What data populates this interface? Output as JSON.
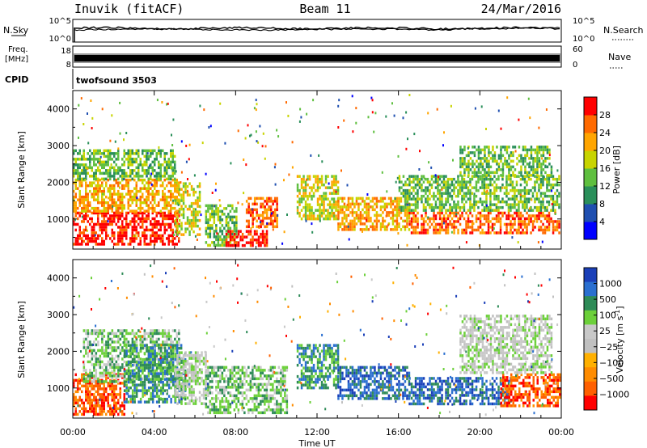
{
  "header": {
    "station": "Inuvik (fitACF)",
    "beam": "Beam 11",
    "date": "24/Mar/2016"
  },
  "nsky_panel": {
    "left_label": "N.Sky",
    "right_label": "N.Search",
    "yticks": [
      "10^5",
      "10^0"
    ],
    "right_yticks": [
      "10^5",
      "10^0"
    ],
    "line_color": "#000000"
  },
  "freq_panel": {
    "left_label_1": "Freq.",
    "left_label_2": "[MHz]",
    "right_label": "Nave",
    "yticks": [
      "18",
      "8"
    ],
    "right_yticks": [
      "60",
      "0"
    ]
  },
  "cpid": {
    "label": "CPID",
    "value": "twofsound 3503"
  },
  "colors": {
    "power": [
      "#0000ff",
      "#1f4fb0",
      "#2a8f5a",
      "#5fbf3f",
      "#c8d400",
      "#ffa500",
      "#ff6a00",
      "#ff0000"
    ],
    "velocity": [
      "#1a3fb8",
      "#2a6fd0",
      "#2e8b57",
      "#6cd03a",
      "#c8c8c8",
      "#c0c0c0",
      "#ffb000",
      "#ff8c00",
      "#ff6000",
      "#ff0000"
    ]
  },
  "chart_data": [
    {
      "type": "heatmap",
      "name": "power",
      "ylabel": "Slant Range [km]",
      "ylim": [
        180,
        4500
      ],
      "yticks": [
        1000,
        2000,
        3000,
        4000
      ],
      "xlim": [
        0,
        24
      ],
      "colorbar": {
        "label": "Power [dB]",
        "range": [
          0,
          32
        ],
        "ticks": [
          4,
          8,
          12,
          16,
          20,
          24,
          28
        ]
      },
      "echo_regions": [
        {
          "t0": 0.0,
          "t1": 5.2,
          "r0": 300,
          "r1": 1200,
          "level": 7
        },
        {
          "t0": 0.0,
          "t1": 5.2,
          "r0": 1200,
          "r1": 2100,
          "level": 5
        },
        {
          "t0": 0.0,
          "t1": 5.0,
          "r0": 2100,
          "r1": 2900,
          "level": 3
        },
        {
          "t0": 5.0,
          "t1": 6.2,
          "r0": 600,
          "r1": 2000,
          "level": 4
        },
        {
          "t0": 6.5,
          "t1": 8.0,
          "r0": 300,
          "r1": 1400,
          "level": 3
        },
        {
          "t0": 7.5,
          "t1": 9.5,
          "r0": 250,
          "r1": 700,
          "level": 7
        },
        {
          "t0": 8.5,
          "t1": 10.0,
          "r0": 800,
          "r1": 1600,
          "level": 6
        },
        {
          "t0": 11.0,
          "t1": 13.0,
          "r0": 1000,
          "r1": 2200,
          "level": 4
        },
        {
          "t0": 13.0,
          "t1": 16.5,
          "r0": 700,
          "r1": 1600,
          "level": 5
        },
        {
          "t0": 16.5,
          "t1": 23.9,
          "r0": 600,
          "r1": 1200,
          "level": 6
        },
        {
          "t0": 16.0,
          "t1": 23.9,
          "r0": 1200,
          "r1": 2200,
          "level": 3
        },
        {
          "t0": 19.0,
          "t1": 23.5,
          "r0": 2200,
          "r1": 3000,
          "level": 3
        }
      ]
    },
    {
      "type": "heatmap",
      "name": "velocity",
      "ylabel": "Slant Range [km]",
      "ylim": [
        180,
        4500
      ],
      "yticks": [
        1000,
        2000,
        3000,
        4000
      ],
      "xlim": [
        0,
        24
      ],
      "xticks": [
        "00:00",
        "04:00",
        "08:00",
        "12:00",
        "16:00",
        "20:00",
        "00:00"
      ],
      "xlabel": "Time UT",
      "colorbar": {
        "label": "Velocity [m s^-1]",
        "ticks": [
          "1000",
          "500",
          "100",
          "25",
          "−25",
          "−100",
          "−500",
          "−1000"
        ]
      },
      "echo_regions": [
        {
          "t0": 0.0,
          "t1": 2.5,
          "r0": 300,
          "r1": 1400,
          "level": 8
        },
        {
          "t0": 0.5,
          "t1": 5.2,
          "r0": 1200,
          "r1": 2600,
          "level": 3
        },
        {
          "t0": 2.5,
          "t1": 5.5,
          "r0": 600,
          "r1": 2200,
          "level": 2
        },
        {
          "t0": 5.0,
          "t1": 6.5,
          "r0": 600,
          "r1": 2000,
          "level": 4
        },
        {
          "t0": 6.5,
          "t1": 10.5,
          "r0": 300,
          "r1": 1600,
          "level": 3
        },
        {
          "t0": 11.0,
          "t1": 13.0,
          "r0": 1000,
          "r1": 2200,
          "level": 2
        },
        {
          "t0": 13.0,
          "t1": 16.5,
          "r0": 700,
          "r1": 1600,
          "level": 1
        },
        {
          "t0": 16.5,
          "t1": 21.5,
          "r0": 600,
          "r1": 1300,
          "level": 1
        },
        {
          "t0": 21.0,
          "t1": 23.9,
          "r0": 500,
          "r1": 1400,
          "level": 8
        },
        {
          "t0": 19.0,
          "t1": 23.5,
          "r0": 1400,
          "r1": 3000,
          "level": 4
        }
      ]
    }
  ]
}
